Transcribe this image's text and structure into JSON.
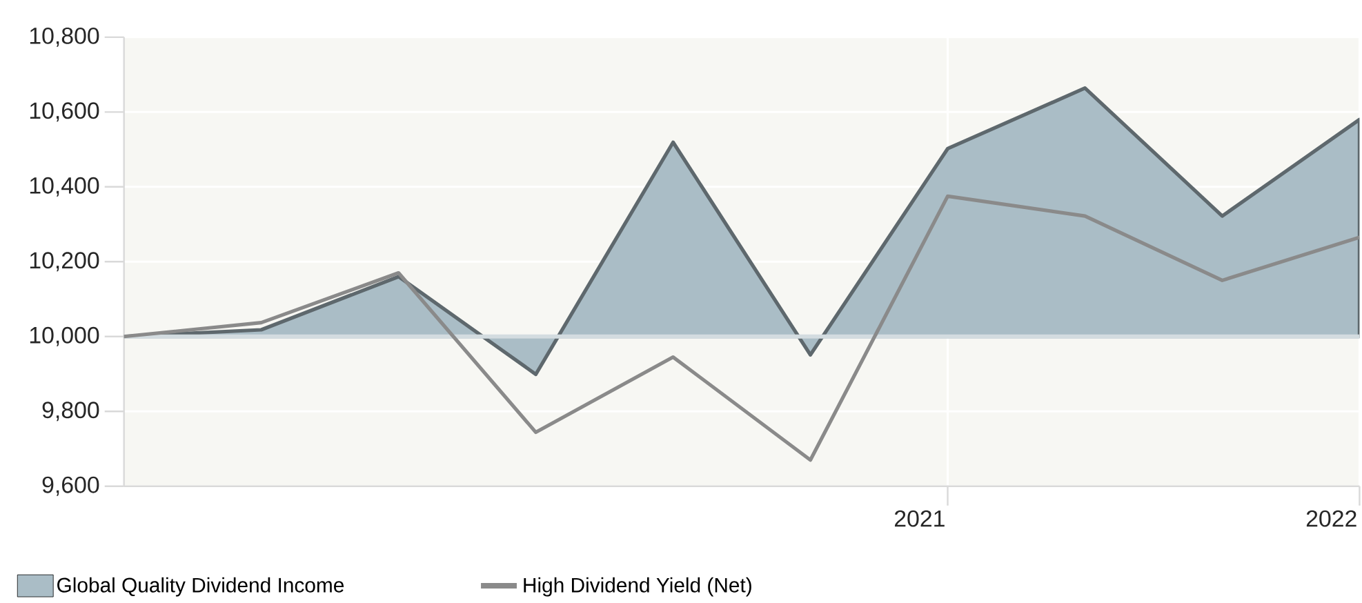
{
  "chart_data": {
    "type": "area",
    "categories": [
      null,
      null,
      null,
      null,
      null,
      null,
      "2021",
      null,
      null,
      "2022"
    ],
    "series": [
      {
        "name": "Global Quality Dividend Income",
        "color": "#aabdc6",
        "values": [
          10000,
          10018,
          10160,
          9899,
          10519,
          9951,
          10502,
          10664,
          10322,
          10580
        ]
      },
      {
        "name": "High Dividend Yield (Net)",
        "type": "line",
        "color": "#8a8a8a",
        "values": [
          10000,
          10037,
          10170,
          9744,
          9945,
          9670,
          10375,
          10322,
          10150,
          10265
        ]
      }
    ],
    "ylim": [
      9600,
      10800
    ],
    "yticks": [
      {
        "value": 9600,
        "label": "9,600"
      },
      {
        "value": 9800,
        "label": "9,800"
      },
      {
        "value": 10000,
        "label": "10,000"
      },
      {
        "value": 10200,
        "label": "10,200"
      },
      {
        "value": 10400,
        "label": "10,400"
      },
      {
        "value": 10600,
        "label": "10,600"
      },
      {
        "value": 10800,
        "label": "10,800"
      }
    ],
    "ref_lines": [
      {
        "axis": "y",
        "value": 10000,
        "color": "#d3dce0"
      }
    ],
    "grid": true,
    "legend": "bottom",
    "line_style": "solid",
    "marker": "none"
  }
}
